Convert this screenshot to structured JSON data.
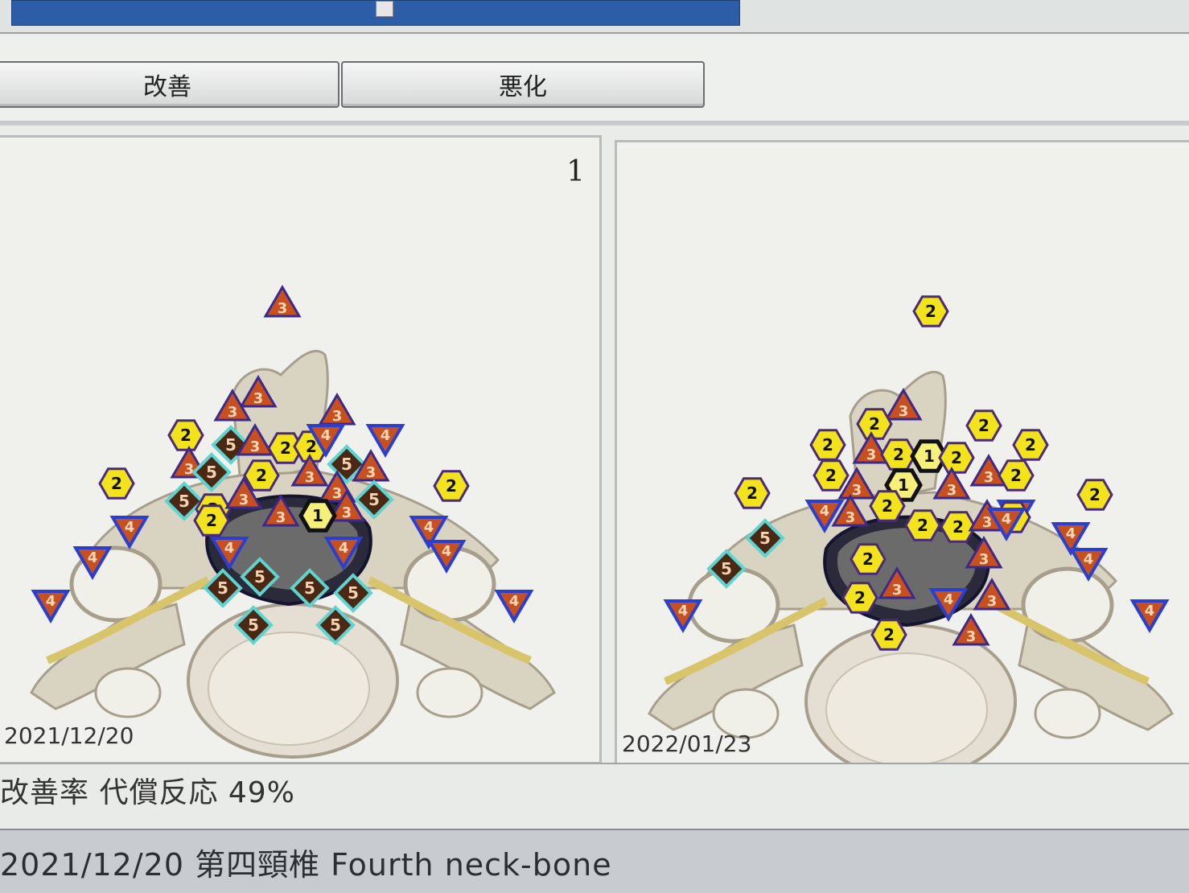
{
  "toolbar": {
    "buttons": [
      {
        "label": "改善"
      },
      {
        "label": "悪化"
      }
    ]
  },
  "panels": [
    {
      "page_number": "1",
      "date": "2021/12/20",
      "markers": [
        {
          "shape": "triangle",
          "label": "3"
        },
        {
          "shape": "triangle",
          "label": "3"
        },
        {
          "shape": "triangle",
          "label": "3"
        },
        {
          "shape": "triangle",
          "label": "3"
        },
        {
          "shape": "hexagon",
          "label": "2"
        },
        {
          "shape": "diamond",
          "label": "5"
        },
        {
          "shape": "triangle",
          "label": "3"
        },
        {
          "shape": "hexagon",
          "label": "2"
        },
        {
          "shape": "hexagon",
          "label": "2"
        },
        {
          "shape": "inverted-triangle",
          "label": "4"
        },
        {
          "shape": "inverted-triangle",
          "label": "4"
        },
        {
          "shape": "hexagon",
          "label": "2"
        },
        {
          "shape": "triangle",
          "label": "3"
        },
        {
          "shape": "diamond",
          "label": "5"
        },
        {
          "shape": "hexagon",
          "label": "2"
        },
        {
          "shape": "triangle",
          "label": "3"
        },
        {
          "shape": "diamond",
          "label": "5"
        },
        {
          "shape": "triangle",
          "label": "3"
        },
        {
          "shape": "hexagon",
          "label": "2"
        },
        {
          "shape": "diamond",
          "label": "5"
        },
        {
          "shape": "hexagon",
          "label": "2"
        },
        {
          "shape": "triangle",
          "label": "3"
        },
        {
          "shape": "triangle",
          "label": "3"
        },
        {
          "shape": "diamond",
          "label": "5"
        },
        {
          "shape": "hexagon",
          "label": "2"
        },
        {
          "shape": "triangle",
          "label": "3"
        },
        {
          "shape": "triangle",
          "label": "3"
        },
        {
          "shape": "hexagon-dark",
          "label": "1"
        },
        {
          "shape": "inverted-triangle",
          "label": "4"
        },
        {
          "shape": "inverted-triangle",
          "label": "4"
        },
        {
          "shape": "inverted-triangle",
          "label": "4"
        },
        {
          "shape": "inverted-triangle",
          "label": "4"
        },
        {
          "shape": "inverted-triangle",
          "label": "4"
        },
        {
          "shape": "inverted-triangle",
          "label": "4"
        },
        {
          "shape": "inverted-triangle",
          "label": "4"
        },
        {
          "shape": "inverted-triangle",
          "label": "4"
        },
        {
          "shape": "diamond",
          "label": "5"
        },
        {
          "shape": "diamond",
          "label": "5"
        },
        {
          "shape": "diamond",
          "label": "5"
        },
        {
          "shape": "diamond",
          "label": "5"
        },
        {
          "shape": "diamond",
          "label": "5"
        },
        {
          "shape": "diamond",
          "label": "5"
        }
      ]
    },
    {
      "page_number": "",
      "date": "2022/01/23",
      "markers": [
        {
          "shape": "hexagon",
          "label": "2"
        },
        {
          "shape": "triangle",
          "label": "3"
        },
        {
          "shape": "hexagon",
          "label": "2"
        },
        {
          "shape": "hexagon",
          "label": "2"
        },
        {
          "shape": "hexagon",
          "label": "2"
        },
        {
          "shape": "hexagon",
          "label": "2"
        },
        {
          "shape": "triangle",
          "label": "3"
        },
        {
          "shape": "hexagon",
          "label": "2"
        },
        {
          "shape": "hexagon-dark",
          "label": "1"
        },
        {
          "shape": "hexagon",
          "label": "2"
        },
        {
          "shape": "triangle",
          "label": "3"
        },
        {
          "shape": "hexagon",
          "label": "2"
        },
        {
          "shape": "hexagon",
          "label": "2"
        },
        {
          "shape": "hexagon",
          "label": "2"
        },
        {
          "shape": "hexagon-dark",
          "label": "1"
        },
        {
          "shape": "triangle",
          "label": "3"
        },
        {
          "shape": "triangle",
          "label": "3"
        },
        {
          "shape": "hexagon",
          "label": "2"
        },
        {
          "shape": "inverted-triangle",
          "label": "4"
        },
        {
          "shape": "triangle",
          "label": "3"
        },
        {
          "shape": "hexagon",
          "label": "2"
        },
        {
          "shape": "hexagon",
          "label": "2"
        },
        {
          "shape": "hexagon",
          "label": "2"
        },
        {
          "shape": "triangle",
          "label": "3"
        },
        {
          "shape": "inverted-triangle",
          "label": "4"
        },
        {
          "shape": "diamond",
          "label": "5"
        },
        {
          "shape": "diamond",
          "label": "5"
        },
        {
          "shape": "inverted-triangle",
          "label": "4"
        },
        {
          "shape": "hexagon",
          "label": "2"
        },
        {
          "shape": "triangle",
          "label": "3"
        },
        {
          "shape": "hexagon",
          "label": "2"
        },
        {
          "shape": "triangle",
          "label": "3"
        },
        {
          "shape": "inverted-triangle",
          "label": "4"
        },
        {
          "shape": "triangle",
          "label": "3"
        },
        {
          "shape": "triangle",
          "label": "3"
        },
        {
          "shape": "hexagon",
          "label": "2"
        },
        {
          "shape": "inverted-triangle",
          "label": "4"
        },
        {
          "shape": "inverted-triangle",
          "label": "4"
        },
        {
          "shape": "inverted-triangle",
          "label": "4"
        },
        {
          "shape": "hexagon",
          "label": "2"
        },
        {
          "shape": "inverted-triangle",
          "label": "4"
        }
      ]
    }
  ],
  "status": {
    "text": "改善率 代償反応 49%"
  },
  "footer": {
    "text": "2021/12/20 第四頸椎 Fourth neck-bone"
  },
  "colors": {
    "hexagon_fill": "#f3e31c",
    "hexagon_stroke": "#4a2a7a",
    "triangle_fill": "#c8501e",
    "triangle_stroke": "#3b2a8c",
    "inverted_triangle_stroke": "#2a3fd0",
    "diamond_fill": "#4a2814",
    "diamond_stroke": "#5fd3cf",
    "scroll_accent": "#2e5da8"
  }
}
